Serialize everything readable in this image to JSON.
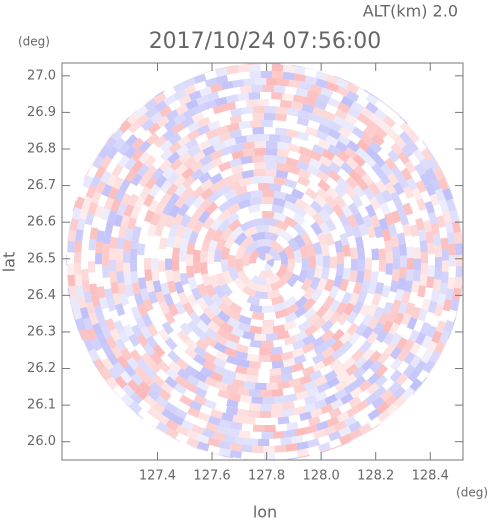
{
  "chart_data": {
    "type": "radar",
    "title": "2017/10/24 07:56:00",
    "subtitle": "ALT(km) 2.0",
    "xlabel": "lon",
    "ylabel": "lat",
    "xunit": "(deg)",
    "yunit": "(deg)",
    "xlim": [
      127.05,
      128.52
    ],
    "ylim": [
      25.95,
      27.035
    ],
    "xticks": [
      127.4,
      127.6,
      127.8,
      {
        "value": 128,
        "label": "128.0"
      },
      128.2,
      128.4
    ],
    "yticks": [
      {
        "value": 26,
        "label": "26.0"
      },
      26.1,
      26.2,
      26.3,
      26.4,
      26.5,
      26.6,
      26.7,
      26.8,
      26.9,
      {
        "value": 27,
        "label": "27.0"
      }
    ]
  }
}
